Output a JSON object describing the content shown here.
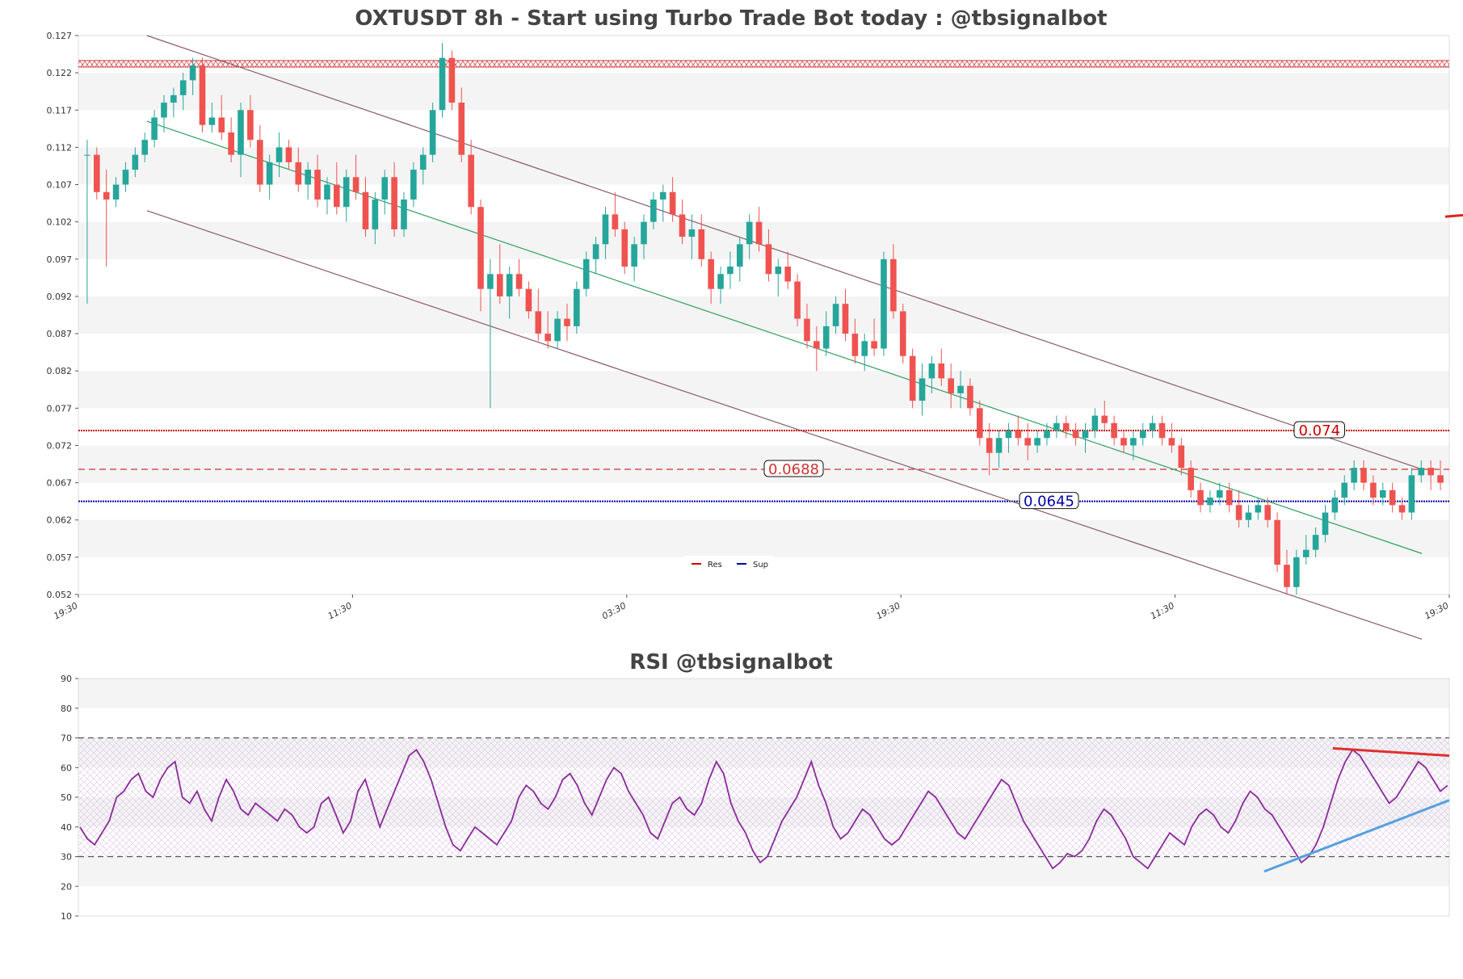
{
  "chart_data": [
    {
      "type": "candlestick",
      "title": "OXTUSDT 8h - Start using Turbo Trade Bot today : @tbsignalbot",
      "y_ticks": [
        "0.127",
        "0.122",
        "0.117",
        "0.112",
        "0.107",
        "0.102",
        "0.097",
        "0.092",
        "0.087",
        "0.082",
        "0.077",
        "0.072",
        "0.067",
        "0.062",
        "0.057",
        "0.052"
      ],
      "x_ticks": [
        "19:30",
        "11:30",
        "03:30",
        "19:30",
        "11:30",
        "19:30"
      ],
      "ylim": [
        0.052,
        0.127
      ],
      "grid": "horizontal bands",
      "legend": {
        "position": "bottom-center",
        "entries": [
          {
            "label": "Res",
            "color": "#cc0000"
          },
          {
            "label": "Sup",
            "color": "#0000aa"
          }
        ]
      },
      "levels": {
        "top_resistance": {
          "value": 0.1232,
          "color": "#cc3333",
          "style": "hatched"
        },
        "resistance_main": {
          "value": 0.074,
          "label": "0.074",
          "color": "#cc0000",
          "style": "dotted"
        },
        "resistance_dash": {
          "value": 0.0688,
          "label": "0.0688",
          "color": "#cc3333",
          "style": "dashed"
        },
        "support": {
          "value": 0.0645,
          "label": "0.0645",
          "color": "#0000aa",
          "style": "dotted"
        }
      },
      "channel": {
        "upper": {
          "start": [
            0.05,
            0.127
          ],
          "end": [
            0.98,
            0.0688
          ]
        },
        "lower": {
          "start": [
            0.05,
            0.1035
          ],
          "end": [
            0.98,
            0.046
          ]
        },
        "middle": {
          "start": [
            0.05,
            0.1155
          ],
          "end": [
            0.98,
            0.0575
          ]
        }
      },
      "colors": {
        "up": "#26a69a",
        "down": "#ef5350",
        "channel": "#8a5a6a",
        "mid": "#2e9e5e"
      },
      "candles": [
        [
          0.111,
          0.113,
          0.091,
          0.111
        ],
        [
          0.111,
          0.112,
          0.105,
          0.106
        ],
        [
          0.106,
          0.109,
          0.096,
          0.105
        ],
        [
          0.105,
          0.108,
          0.104,
          0.107
        ],
        [
          0.107,
          0.11,
          0.106,
          0.109
        ],
        [
          0.109,
          0.112,
          0.108,
          0.111
        ],
        [
          0.111,
          0.114,
          0.11,
          0.113
        ],
        [
          0.113,
          0.117,
          0.112,
          0.116
        ],
        [
          0.116,
          0.119,
          0.114,
          0.118
        ],
        [
          0.118,
          0.12,
          0.116,
          0.119
        ],
        [
          0.119,
          0.122,
          0.117,
          0.121
        ],
        [
          0.121,
          0.124,
          0.119,
          0.123
        ],
        [
          0.123,
          0.124,
          0.114,
          0.115
        ],
        [
          0.115,
          0.118,
          0.114,
          0.116
        ],
        [
          0.116,
          0.119,
          0.113,
          0.114
        ],
        [
          0.114,
          0.116,
          0.11,
          0.111
        ],
        [
          0.111,
          0.118,
          0.108,
          0.117
        ],
        [
          0.117,
          0.119,
          0.112,
          0.113
        ],
        [
          0.113,
          0.115,
          0.106,
          0.107
        ],
        [
          0.107,
          0.111,
          0.105,
          0.11
        ],
        [
          0.11,
          0.114,
          0.108,
          0.112
        ],
        [
          0.112,
          0.113,
          0.109,
          0.11
        ],
        [
          0.11,
          0.112,
          0.106,
          0.107
        ],
        [
          0.107,
          0.11,
          0.105,
          0.109
        ],
        [
          0.109,
          0.111,
          0.104,
          0.105
        ],
        [
          0.105,
          0.108,
          0.103,
          0.107
        ],
        [
          0.107,
          0.11,
          0.103,
          0.104
        ],
        [
          0.104,
          0.109,
          0.102,
          0.108
        ],
        [
          0.108,
          0.111,
          0.105,
          0.106
        ],
        [
          0.106,
          0.108,
          0.1,
          0.101
        ],
        [
          0.101,
          0.106,
          0.099,
          0.105
        ],
        [
          0.105,
          0.109,
          0.103,
          0.108
        ],
        [
          0.108,
          0.11,
          0.1,
          0.101
        ],
        [
          0.101,
          0.106,
          0.1,
          0.105
        ],
        [
          0.105,
          0.11,
          0.104,
          0.109
        ],
        [
          0.109,
          0.112,
          0.107,
          0.111
        ],
        [
          0.111,
          0.118,
          0.11,
          0.117
        ],
        [
          0.117,
          0.126,
          0.116,
          0.124
        ],
        [
          0.124,
          0.125,
          0.117,
          0.118
        ],
        [
          0.118,
          0.12,
          0.11,
          0.111
        ],
        [
          0.111,
          0.113,
          0.103,
          0.104
        ],
        [
          0.104,
          0.105,
          0.09,
          0.093
        ],
        [
          0.093,
          0.097,
          0.077,
          0.095
        ],
        [
          0.095,
          0.099,
          0.091,
          0.092
        ],
        [
          0.092,
          0.096,
          0.089,
          0.095
        ],
        [
          0.095,
          0.097,
          0.092,
          0.093
        ],
        [
          0.093,
          0.094,
          0.089,
          0.09
        ],
        [
          0.09,
          0.093,
          0.086,
          0.087
        ],
        [
          0.087,
          0.09,
          0.085,
          0.086
        ],
        [
          0.086,
          0.09,
          0.085,
          0.089
        ],
        [
          0.089,
          0.091,
          0.086,
          0.088
        ],
        [
          0.088,
          0.094,
          0.087,
          0.093
        ],
        [
          0.093,
          0.098,
          0.092,
          0.097
        ],
        [
          0.097,
          0.1,
          0.095,
          0.099
        ],
        [
          0.099,
          0.104,
          0.097,
          0.103
        ],
        [
          0.103,
          0.106,
          0.1,
          0.101
        ],
        [
          0.101,
          0.102,
          0.095,
          0.096
        ],
        [
          0.096,
          0.1,
          0.094,
          0.099
        ],
        [
          0.099,
          0.103,
          0.097,
          0.102
        ],
        [
          0.102,
          0.106,
          0.101,
          0.105
        ],
        [
          0.105,
          0.107,
          0.102,
          0.106
        ],
        [
          0.106,
          0.108,
          0.102,
          0.103
        ],
        [
          0.103,
          0.105,
          0.099,
          0.1
        ],
        [
          0.1,
          0.103,
          0.097,
          0.101
        ],
        [
          0.101,
          0.103,
          0.096,
          0.097
        ],
        [
          0.097,
          0.098,
          0.091,
          0.093
        ],
        [
          0.093,
          0.096,
          0.091,
          0.095
        ],
        [
          0.095,
          0.098,
          0.093,
          0.096
        ],
        [
          0.096,
          0.1,
          0.094,
          0.099
        ],
        [
          0.099,
          0.103,
          0.097,
          0.102
        ],
        [
          0.102,
          0.104,
          0.098,
          0.099
        ],
        [
          0.099,
          0.101,
          0.094,
          0.095
        ],
        [
          0.095,
          0.097,
          0.092,
          0.096
        ],
        [
          0.096,
          0.098,
          0.093,
          0.094
        ],
        [
          0.094,
          0.095,
          0.088,
          0.089
        ],
        [
          0.089,
          0.091,
          0.085,
          0.086
        ],
        [
          0.086,
          0.088,
          0.082,
          0.085
        ],
        [
          0.085,
          0.09,
          0.084,
          0.088
        ],
        [
          0.088,
          0.092,
          0.087,
          0.091
        ],
        [
          0.091,
          0.093,
          0.086,
          0.087
        ],
        [
          0.087,
          0.089,
          0.083,
          0.084
        ],
        [
          0.084,
          0.087,
          0.082,
          0.086
        ],
        [
          0.086,
          0.089,
          0.084,
          0.085
        ],
        [
          0.085,
          0.098,
          0.084,
          0.097
        ],
        [
          0.097,
          0.099,
          0.089,
          0.09
        ],
        [
          0.09,
          0.091,
          0.083,
          0.084
        ],
        [
          0.084,
          0.085,
          0.077,
          0.078
        ],
        [
          0.078,
          0.083,
          0.076,
          0.081
        ],
        [
          0.081,
          0.084,
          0.079,
          0.083
        ],
        [
          0.083,
          0.085,
          0.08,
          0.081
        ],
        [
          0.081,
          0.083,
          0.077,
          0.079
        ],
        [
          0.079,
          0.082,
          0.077,
          0.08
        ],
        [
          0.08,
          0.081,
          0.076,
          0.077
        ],
        [
          0.077,
          0.078,
          0.072,
          0.073
        ],
        [
          0.073,
          0.075,
          0.068,
          0.071
        ],
        [
          0.071,
          0.074,
          0.069,
          0.073
        ],
        [
          0.073,
          0.075,
          0.071,
          0.074
        ],
        [
          0.074,
          0.076,
          0.072,
          0.073
        ],
        [
          0.073,
          0.075,
          0.07,
          0.072
        ],
        [
          0.072,
          0.074,
          0.071,
          0.073
        ],
        [
          0.073,
          0.075,
          0.072,
          0.074
        ],
        [
          0.074,
          0.076,
          0.073,
          0.075
        ],
        [
          0.075,
          0.076,
          0.073,
          0.074
        ],
        [
          0.074,
          0.075,
          0.072,
          0.073
        ],
        [
          0.073,
          0.075,
          0.071,
          0.074
        ],
        [
          0.074,
          0.077,
          0.073,
          0.076
        ],
        [
          0.076,
          0.078,
          0.074,
          0.075
        ],
        [
          0.075,
          0.076,
          0.072,
          0.073
        ],
        [
          0.073,
          0.074,
          0.071,
          0.072
        ],
        [
          0.072,
          0.074,
          0.07,
          0.073
        ],
        [
          0.073,
          0.075,
          0.072,
          0.074
        ],
        [
          0.074,
          0.076,
          0.073,
          0.075
        ],
        [
          0.075,
          0.076,
          0.072,
          0.073
        ],
        [
          0.073,
          0.075,
          0.071,
          0.072
        ],
        [
          0.072,
          0.073,
          0.068,
          0.069
        ],
        [
          0.069,
          0.07,
          0.065,
          0.066
        ],
        [
          0.066,
          0.067,
          0.063,
          0.064
        ],
        [
          0.064,
          0.066,
          0.063,
          0.065
        ],
        [
          0.065,
          0.067,
          0.064,
          0.066
        ],
        [
          0.066,
          0.067,
          0.063,
          0.064
        ],
        [
          0.064,
          0.066,
          0.061,
          0.062
        ],
        [
          0.062,
          0.064,
          0.061,
          0.063
        ],
        [
          0.063,
          0.065,
          0.062,
          0.064
        ],
        [
          0.064,
          0.065,
          0.061,
          0.062
        ],
        [
          0.062,
          0.063,
          0.055,
          0.056
        ],
        [
          0.056,
          0.058,
          0.052,
          0.053
        ],
        [
          0.053,
          0.058,
          0.052,
          0.057
        ],
        [
          0.057,
          0.06,
          0.056,
          0.058
        ],
        [
          0.058,
          0.061,
          0.057,
          0.06
        ],
        [
          0.06,
          0.064,
          0.059,
          0.063
        ],
        [
          0.063,
          0.066,
          0.062,
          0.065
        ],
        [
          0.065,
          0.068,
          0.064,
          0.067
        ],
        [
          0.067,
          0.07,
          0.066,
          0.069
        ],
        [
          0.069,
          0.07,
          0.066,
          0.067
        ],
        [
          0.067,
          0.068,
          0.064,
          0.065
        ],
        [
          0.065,
          0.067,
          0.064,
          0.066
        ],
        [
          0.066,
          0.067,
          0.063,
          0.064
        ],
        [
          0.064,
          0.065,
          0.062,
          0.063
        ],
        [
          0.063,
          0.069,
          0.062,
          0.068
        ],
        [
          0.068,
          0.07,
          0.067,
          0.069
        ],
        [
          0.069,
          0.07,
          0.066,
          0.068
        ],
        [
          0.068,
          0.07,
          0.066,
          0.067
        ]
      ]
    },
    {
      "type": "line",
      "title": "RSI @tbsignalbot",
      "y_ticks": [
        "90",
        "80",
        "70",
        "60",
        "50",
        "40",
        "30",
        "20",
        "10"
      ],
      "ylim": [
        10,
        90
      ],
      "levels": [
        70,
        30
      ],
      "color": "#8a2a9a",
      "trendlines": [
        {
          "color": "#e03030",
          "start": [
            0.915,
            66.5
          ],
          "end": [
            1.0,
            64
          ]
        },
        {
          "color": "#55a0e0",
          "start": [
            0.865,
            25
          ],
          "end": [
            1.0,
            49
          ]
        }
      ],
      "values": [
        40,
        36,
        34,
        38,
        42,
        50,
        52,
        56,
        58,
        52,
        50,
        56,
        60,
        62,
        50,
        48,
        52,
        46,
        42,
        50,
        56,
        52,
        46,
        44,
        48,
        46,
        44,
        42,
        46,
        44,
        40,
        38,
        40,
        48,
        50,
        44,
        38,
        42,
        52,
        56,
        48,
        40,
        46,
        52,
        58,
        64,
        66,
        62,
        56,
        48,
        40,
        34,
        32,
        36,
        40,
        38,
        36,
        34,
        38,
        42,
        50,
        54,
        52,
        48,
        46,
        50,
        56,
        58,
        54,
        48,
        44,
        50,
        56,
        60,
        58,
        52,
        48,
        44,
        38,
        36,
        42,
        48,
        50,
        46,
        44,
        48,
        56,
        62,
        58,
        48,
        42,
        38,
        32,
        28,
        30,
        36,
        42,
        46,
        50,
        56,
        62,
        54,
        48,
        40,
        36,
        38,
        42,
        46,
        44,
        40,
        36,
        34,
        36,
        40,
        44,
        48,
        52,
        50,
        46,
        42,
        38,
        36,
        40,
        44,
        48,
        52,
        56,
        54,
        48,
        42,
        38,
        34,
        30,
        26,
        28,
        31,
        30,
        32,
        36,
        42,
        46,
        44,
        40,
        36,
        30,
        28,
        26,
        30,
        34,
        38,
        36,
        34,
        40,
        44,
        46,
        44,
        40,
        38,
        42,
        48,
        52,
        50,
        46,
        44,
        40,
        36,
        32,
        28,
        30,
        34,
        40,
        48,
        56,
        62,
        66,
        64,
        60,
        56,
        52,
        48,
        50,
        54,
        58,
        62,
        60,
        56,
        52,
        54
      ],
      "values_note": ""
    }
  ]
}
